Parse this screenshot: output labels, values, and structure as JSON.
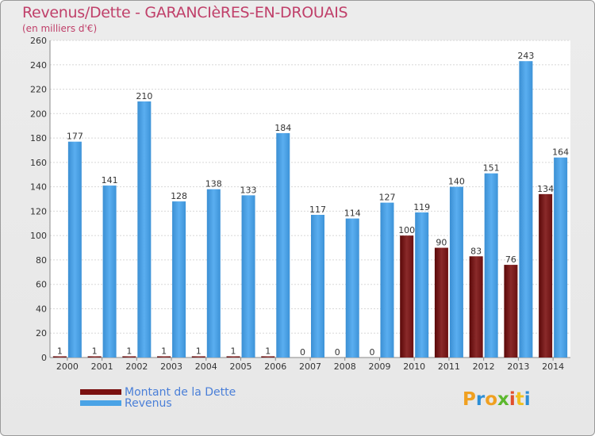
{
  "title": "Revenus/Dette - GARANCIèRES-EN-DROUAIS",
  "subtitle": "(en milliers d'€)",
  "logo": {
    "text": "Proxiti",
    "colors": [
      "#f0a020",
      "#2d8fd6",
      "#f0a020",
      "#5cb82e",
      "#e04f2c",
      "#f0c020",
      "#2d8fd6"
    ]
  },
  "colors": {
    "dette": "#7a1010",
    "revenus": "#4aa3e6",
    "title": "#c0406a"
  },
  "chart_data": {
    "type": "bar",
    "title": "Revenus/Dette - GARANCIèRES-EN-DROUAIS",
    "ylabel": "(en milliers d'€)",
    "ylim": [
      0,
      260
    ],
    "yticks": [
      0,
      20,
      40,
      60,
      80,
      100,
      120,
      140,
      160,
      180,
      200,
      220,
      240,
      260
    ],
    "grid": true,
    "legend_position": "bottom-left",
    "categories": [
      "2000",
      "2001",
      "2002",
      "2003",
      "2004",
      "2005",
      "2006",
      "2007",
      "2008",
      "2009",
      "2010",
      "2011",
      "2012",
      "2013",
      "2014"
    ],
    "series": [
      {
        "name": "Montant de la Dette",
        "values": [
          1,
          1,
          1,
          1,
          1,
          1,
          1,
          0,
          0,
          0,
          100,
          90,
          83,
          76,
          134
        ]
      },
      {
        "name": "Revenus",
        "values": [
          177,
          141,
          210,
          128,
          138,
          133,
          184,
          117,
          114,
          127,
          119,
          140,
          151,
          243,
          164
        ]
      }
    ]
  }
}
